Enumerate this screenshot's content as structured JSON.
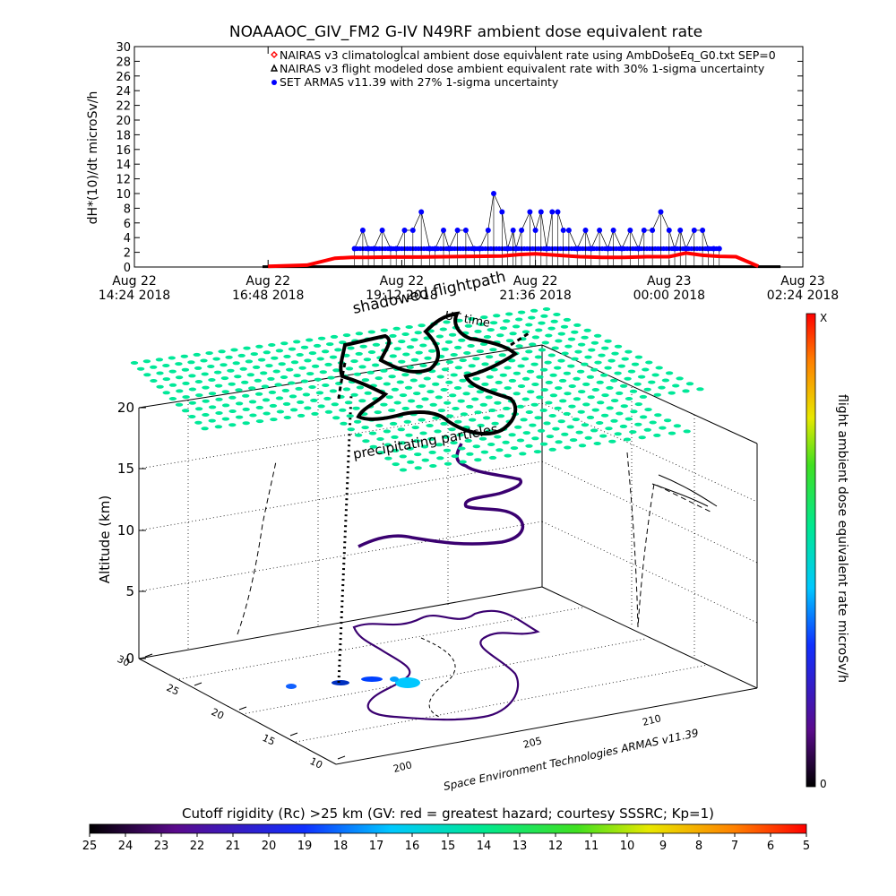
{
  "chart_data": [
    {
      "type": "scatter",
      "title": "NOAAAOC_GIV_FM2 G-IV    N49RF  ambient dose equivalent rate",
      "ylabel": "dH*(10)/dt microSv/h",
      "xlabel": "UT time",
      "ylim": [
        0,
        30
      ],
      "yticks": [
        0,
        2,
        4,
        6,
        8,
        10,
        12,
        14,
        16,
        18,
        20,
        22,
        24,
        26,
        28,
        30
      ],
      "xlim_hours": [
        14.4,
        26.4
      ],
      "xticks": [
        {
          "h": 14.4,
          "line1": "Aug 22",
          "line2": "14:24 2018"
        },
        {
          "h": 16.8,
          "line1": "Aug 22",
          "line2": "16:48 2018"
        },
        {
          "h": 19.2,
          "line1": "Aug 22",
          "line2": "19:12 2018"
        },
        {
          "h": 21.6,
          "line1": "Aug 22",
          "line2": "21:36 2018"
        },
        {
          "h": 24.0,
          "line1": "Aug 23",
          "line2": "00:00 2018"
        },
        {
          "h": 26.4,
          "line1": "Aug 23",
          "line2": "02:24 2018"
        }
      ],
      "legend": [
        {
          "label": "NAIRAS v3 climatological ambient dose equivalent rate using AmbDoseEq_G0.txt SEP=0",
          "color": "#ff0000",
          "marker": "diamond"
        },
        {
          "label": "NAIRAS v3 flight modeled dose ambient equivalent rate with 30% 1-sigma uncertainty",
          "color": "#000000",
          "marker": "triangle"
        },
        {
          "label": "SET ARMAS v11.39 with 27% 1-sigma uncertainty",
          "color": "#0000ff",
          "marker": "dot"
        }
      ],
      "series": [
        {
          "name": "NAIRAS v3 climatological ambient dose equivalent rate using AmbDoseEq_G0.txt SEP=0",
          "color": "#ff0000",
          "x": [
            16.8,
            17.5,
            18.0,
            18.3,
            18.6,
            19.0,
            19.5,
            20.0,
            20.5,
            21.0,
            21.3,
            21.6,
            22.0,
            22.4,
            22.8,
            23.2,
            23.6,
            24.0,
            24.3,
            24.6,
            24.9,
            25.2,
            25.45,
            25.6
          ],
          "y": [
            0.1,
            0.25,
            1.2,
            1.3,
            1.3,
            1.35,
            1.35,
            1.4,
            1.45,
            1.5,
            1.7,
            1.8,
            1.6,
            1.4,
            1.3,
            1.3,
            1.4,
            1.4,
            1.9,
            1.6,
            1.45,
            1.4,
            0.6,
            0.1
          ]
        },
        {
          "name": "NAIRAS v3 flight modeled dose ambient equivalent rate with 30% 1-sigma uncertainty",
          "color": "#000000",
          "x": [
            16.7,
            26.0
          ],
          "y": [
            0.05,
            0.05
          ]
        },
        {
          "name": "SET ARMAS v11.39 with 27% 1-sigma uncertainty",
          "color": "#0000ff",
          "x": [
            18.35,
            18.5,
            18.6,
            18.7,
            18.85,
            19.0,
            19.1,
            19.25,
            19.4,
            19.55,
            19.7,
            19.8,
            19.95,
            20.05,
            20.2,
            20.35,
            20.5,
            20.6,
            20.75,
            20.85,
            21.0,
            21.1,
            21.2,
            21.25,
            21.35,
            21.5,
            21.6,
            21.7,
            21.8,
            21.9,
            22.0,
            22.1,
            22.2,
            22.35,
            22.5,
            22.6,
            22.75,
            22.9,
            23.0,
            23.15,
            23.3,
            23.45,
            23.55,
            23.7,
            23.85,
            24.0,
            24.1,
            24.2,
            24.3,
            24.45,
            24.6,
            24.7,
            24.8,
            24.9
          ],
          "y": [
            2.5,
            5,
            2.5,
            2.5,
            5,
            2.5,
            2.5,
            5,
            5,
            7.5,
            2.5,
            2.5,
            5,
            2.5,
            5,
            5,
            2.5,
            2.5,
            5,
            10,
            7.5,
            2.5,
            5,
            2.5,
            5,
            7.5,
            5,
            7.5,
            2.5,
            7.5,
            7.5,
            5,
            5,
            2.5,
            5,
            2.5,
            5,
            2.5,
            5,
            2.5,
            5,
            2.5,
            5,
            5,
            7.5,
            5,
            2.5,
            5,
            2.5,
            5,
            5,
            2.5,
            2.5,
            2.5
          ]
        }
      ]
    },
    {
      "type": "surface-3d",
      "labels": {
        "shadow": "shadowed flightpath",
        "time": "UT time",
        "precip": "precipitating particles",
        "credit": "Space Environment Technologies ARMAS v11.39"
      },
      "zlabel": "Altitude (km)",
      "zticks": [
        0,
        5,
        10,
        15,
        20
      ],
      "yticks": [
        10,
        15,
        20,
        25,
        30
      ],
      "xticks": [
        200,
        205,
        210
      ],
      "colorbar": {
        "label": "flight ambient dose equivalent rate microSv/h",
        "top_label": "X",
        "bottom_label": "0"
      }
    },
    {
      "type": "heatmap",
      "title": "Cutoff rigidity (Rc) >25 km (GV: red = greatest hazard; courtesy SSSRC; Kp=1)",
      "ticks": [
        "25",
        "24",
        "23",
        "22",
        "21",
        "20",
        "19",
        "18",
        "17",
        "16",
        "15",
        "14",
        "13",
        "12",
        "11",
        "10",
        "9",
        "8",
        "7",
        "6",
        "5"
      ]
    }
  ]
}
